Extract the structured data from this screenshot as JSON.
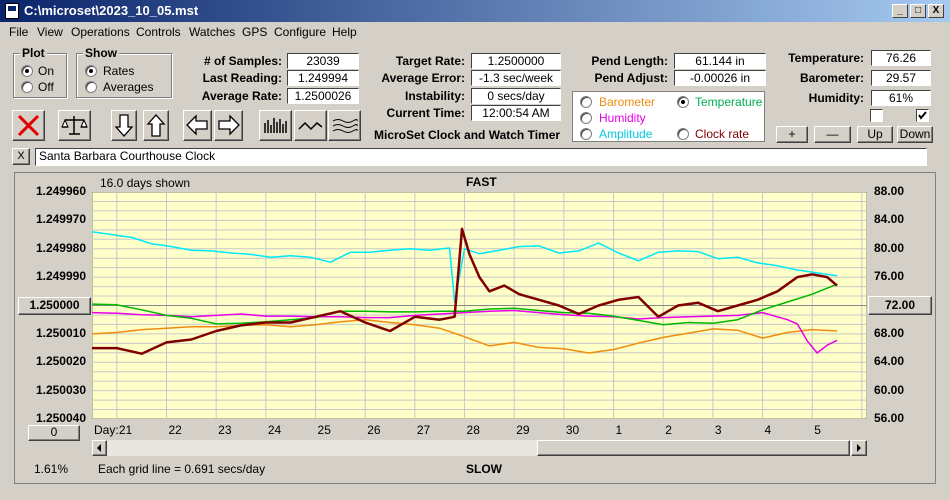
{
  "window": {
    "title": "C:\\microset\\2023_10_05.mst",
    "min_glyph": "_",
    "max_glyph": "□",
    "close_glyph": "X"
  },
  "menu": [
    "File",
    "View",
    "Operations",
    "Controls",
    "Watches",
    "GPS",
    "Configure",
    "Help"
  ],
  "plot_group": {
    "title": "Plot",
    "on": "On",
    "off": "Off",
    "selected": "On"
  },
  "show_group": {
    "title": "Show",
    "rates": "Rates",
    "averages": "Averages",
    "selected": "Rates"
  },
  "stats": {
    "samples_label": "# of Samples:",
    "samples_value": "23039",
    "last_reading_label": "Last Reading:",
    "last_reading_value": "1.249994",
    "average_rate_label": "Average Rate:",
    "average_rate_value": "1.2500026",
    "target_rate_label": "Target Rate:",
    "target_rate_value": "1.2500000",
    "average_error_label": "Average Error:",
    "average_error_value": "-1.3 sec/week",
    "instability_label": "Instability:",
    "instability_value": "0 secs/day",
    "current_time_label": "Current Time:",
    "current_time_value": "12:00:54 AM",
    "pend_length_label": "Pend Length:",
    "pend_length_value": "61.144 in",
    "pend_adjust_label": "Pend Adjust:",
    "pend_adjust_value": "-0.00026 in",
    "temperature_label": "Temperature:",
    "temperature_value": "76.26",
    "barometer_label": "Barometer:",
    "barometer_value": "29.57",
    "humidity_label": "Humidity:",
    "humidity_value": "61%"
  },
  "app_caption": "MicroSet Clock and Watch Timer",
  "legend": {
    "barometer": "Barometer",
    "temperature": "Temperature",
    "humidity": "Humidity",
    "amplitude": "Amplitude",
    "clock_rate": "Clock rate",
    "selected": "Temperature"
  },
  "adjust_buttons": {
    "plus": "+",
    "minus": "—",
    "up": "Up",
    "down": "Down"
  },
  "clock_name": "Santa Barbara Courthouse Clock",
  "clock_close": "X",
  "chart_header": {
    "days_shown": "16.0 days shown",
    "fast": "FAST",
    "slow": "SLOW",
    "grid_note": "Each grid line = 0.691 secs/day",
    "zoom": "1.61%"
  },
  "left_buttons": {
    "center": "1.250000",
    "offset": "0"
  },
  "right_button": "72.00",
  "colors": {
    "temperature": "#00e8f8",
    "clock_rate": "#800000",
    "barometer": "#f08c10",
    "humidity": "#e800e8",
    "amplitude_line": "#00b800",
    "plot_bg": "#ffffc8",
    "grid": "#c8c8c8"
  },
  "chart_data": {
    "type": "line",
    "x_label": "Day:",
    "x_ticks": [
      "21",
      "22",
      "23",
      "24",
      "25",
      "26",
      "27",
      "28",
      "29",
      "30",
      "1",
      "2",
      "3",
      "4",
      "5"
    ],
    "y_left_ticks": [
      "1.249960",
      "1.249970",
      "1.249980",
      "1.249990",
      "1.250000",
      "1.250010",
      "1.250020",
      "1.250030",
      "1.250040"
    ],
    "y_left_range": [
      1.24996,
      1.25004
    ],
    "y_right_ticks": [
      "88.00",
      "84.00",
      "80.00",
      "76.00",
      "72.00",
      "68.00",
      "64.00",
      "60.00",
      "56.00"
    ],
    "y_right_range": [
      56,
      88
    ],
    "x_range_days": [
      0,
      15.2
    ],
    "series": [
      {
        "name": "Temperature",
        "axis": "right",
        "x": [
          0,
          0.4,
          0.8,
          1.2,
          1.6,
          2.0,
          2.4,
          2.8,
          3.2,
          3.6,
          4.0,
          4.4,
          4.8,
          5.2,
          5.6,
          6.0,
          6.4,
          6.8,
          7.2,
          7.3,
          7.5,
          7.8,
          8.2,
          8.6,
          9.0,
          9.4,
          9.8,
          10.2,
          10.6,
          11.0,
          11.4,
          11.8,
          12.2,
          12.6,
          13.0,
          13.4,
          13.8,
          14.2,
          14.6,
          15.0
        ],
        "values": [
          82.4,
          82.0,
          81.6,
          80.7,
          80.3,
          79.8,
          79.7,
          79.4,
          79.2,
          78.8,
          79.0,
          78.8,
          78.1,
          79.5,
          79.5,
          79.8,
          80.0,
          79.8,
          80.1,
          72.5,
          80.0,
          79.3,
          79.8,
          80.3,
          80.4,
          79.4,
          79.7,
          80.8,
          79.4,
          78.3,
          79.5,
          79.7,
          79.6,
          78.6,
          78.8,
          78.0,
          77.6,
          77.0,
          76.6,
          76.2
        ]
      },
      {
        "name": "Clock rate",
        "axis": "left",
        "x": [
          0,
          0.5,
          1.0,
          1.5,
          2.0,
          2.5,
          3.0,
          3.5,
          4.0,
          4.5,
          5.0,
          5.5,
          6.0,
          6.5,
          7.0,
          7.3,
          7.45,
          7.6,
          7.8,
          8.0,
          8.3,
          8.6,
          9.0,
          9.4,
          9.8,
          10.2,
          10.6,
          11.0,
          11.4,
          11.8,
          12.2,
          12.6,
          13.0,
          13.4,
          13.8,
          14.2,
          14.5,
          14.8,
          15.0
        ],
        "values": [
          1.250015,
          1.250015,
          1.250017,
          1.250013,
          1.250012,
          1.250009,
          1.250007,
          1.250006,
          1.250006,
          1.250004,
          1.250002,
          1.250006,
          1.250009,
          1.250004,
          1.250005,
          1.250004,
          1.249973,
          1.249982,
          1.24999,
          1.249995,
          1.249993,
          1.249996,
          1.249998,
          1.25,
          1.250003,
          1.25,
          1.249998,
          1.249997,
          1.250004,
          1.25,
          1.249999,
          1.250002,
          1.25,
          1.249998,
          1.249995,
          1.24999,
          1.249989,
          1.24999,
          1.249993
        ]
      },
      {
        "name": "Barometer",
        "axis": "right",
        "x": [
          0,
          0.5,
          1.0,
          1.5,
          2.0,
          2.5,
          3.0,
          3.5,
          4.0,
          4.5,
          5.0,
          5.5,
          6.0,
          6.5,
          7.0,
          7.5,
          8.0,
          8.5,
          9.0,
          9.5,
          10.0,
          10.5,
          11.0,
          11.5,
          12.0,
          12.5,
          13.0,
          13.5,
          14.0,
          14.5,
          15.0
        ],
        "values": [
          68.0,
          68.2,
          68.6,
          68.8,
          69.0,
          69.0,
          69.2,
          69.3,
          69.0,
          69.3,
          69.7,
          70.0,
          69.6,
          69.3,
          68.8,
          67.6,
          66.3,
          66.8,
          66.1,
          65.9,
          65.3,
          65.8,
          66.7,
          67.5,
          68.1,
          68.7,
          68.5,
          67.4,
          68.2,
          68.6,
          68.4
        ]
      },
      {
        "name": "Humidity",
        "axis": "right",
        "x": [
          0,
          0.5,
          1.0,
          1.5,
          2.0,
          2.5,
          3.0,
          3.5,
          4.0,
          4.5,
          5.0,
          5.5,
          6.0,
          6.5,
          7.0,
          7.5,
          8.0,
          8.5,
          9.0,
          9.5,
          10.0,
          10.5,
          11.0,
          11.5,
          12.0,
          12.5,
          13.0,
          13.5,
          14.0,
          14.2,
          14.4,
          14.6,
          14.8,
          15.0
        ],
        "values": [
          71.0,
          70.9,
          70.7,
          70.6,
          70.4,
          70.6,
          70.8,
          70.5,
          70.5,
          70.4,
          70.4,
          70.3,
          70.3,
          70.6,
          70.8,
          71.0,
          71.2,
          71.3,
          71.0,
          70.7,
          70.5,
          70.4,
          70.1,
          70.3,
          70.4,
          70.5,
          70.6,
          71.0,
          70.0,
          69.4,
          67.0,
          65.3,
          66.4,
          67.1
        ]
      },
      {
        "name": "Amplitude",
        "axis": "right",
        "x": [
          0,
          0.5,
          1.0,
          1.5,
          2.0,
          2.5,
          3.0,
          3.5,
          4.0,
          4.5,
          5.0,
          5.5,
          6.0,
          6.5,
          7.0,
          7.5,
          8.0,
          8.5,
          9.0,
          9.5,
          10.0,
          10.5,
          11.0,
          11.5,
          12.0,
          12.5,
          13.0,
          13.5,
          14.0,
          14.5,
          15.0
        ],
        "values": [
          72.2,
          72.1,
          71.4,
          70.6,
          70.2,
          69.4,
          69.5,
          69.7,
          70.0,
          70.3,
          71.2,
          71.2,
          71.1,
          71.1,
          71.2,
          71.2,
          71.5,
          71.6,
          71.3,
          71.0,
          70.9,
          70.5,
          69.9,
          69.3,
          69.6,
          69.5,
          70.0,
          71.4,
          72.5,
          73.6,
          75.0
        ]
      }
    ]
  }
}
